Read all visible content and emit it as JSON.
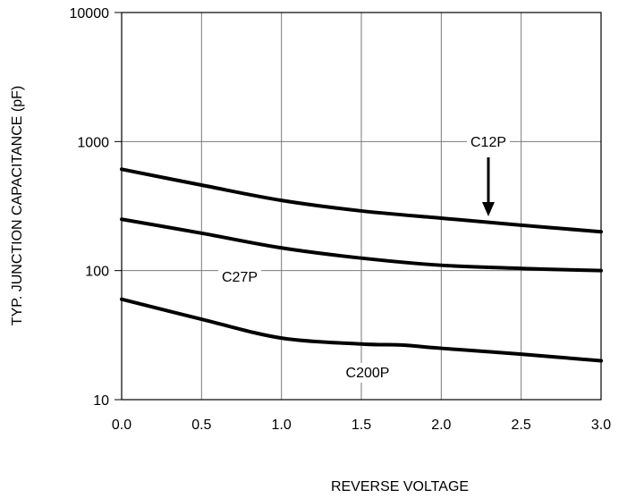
{
  "chart_data": {
    "type": "line",
    "xlabel": "REVERSE VOLTAGE",
    "ylabel": "TYP. JUNCTION CAPACITANCE (pF)",
    "xlim": [
      0.0,
      3.0
    ],
    "ylim": [
      10,
      10000
    ],
    "yscale": "log",
    "grid": true,
    "x_ticks": [
      "0.0",
      "0.5",
      "1.0",
      "1.5",
      "2.0",
      "2.5",
      "3.0"
    ],
    "y_ticks": [
      "10",
      "100",
      "1000",
      "10000"
    ],
    "x_tick_values": [
      0.0,
      0.5,
      1.0,
      1.5,
      2.0,
      2.5,
      3.0
    ],
    "y_tick_values": [
      10,
      100,
      1000,
      10000
    ],
    "series": [
      {
        "name": "C12P",
        "x": [
          0.0,
          0.5,
          1.0,
          1.5,
          2.0,
          2.5,
          3.0
        ],
        "values": [
          610,
          460,
          350,
          290,
          255,
          225,
          200
        ]
      },
      {
        "name": "C27P",
        "x": [
          0.0,
          0.5,
          1.0,
          1.5,
          2.0,
          2.5,
          3.0
        ],
        "values": [
          250,
          195,
          150,
          125,
          110,
          104,
          100
        ]
      },
      {
        "name": "C200P",
        "x": [
          0.0,
          0.5,
          1.0,
          1.5,
          1.75,
          2.0,
          2.5,
          3.0
        ],
        "values": [
          60,
          42,
          30,
          27,
          26.5,
          25,
          22.5,
          20
        ]
      }
    ],
    "annotations": [
      {
        "text": "C12P",
        "series": "C12P",
        "arrow": true
      },
      {
        "text": "C27P",
        "series": "C27P",
        "arrow": false
      },
      {
        "text": "C200P",
        "series": "C200P",
        "arrow": false
      }
    ]
  }
}
